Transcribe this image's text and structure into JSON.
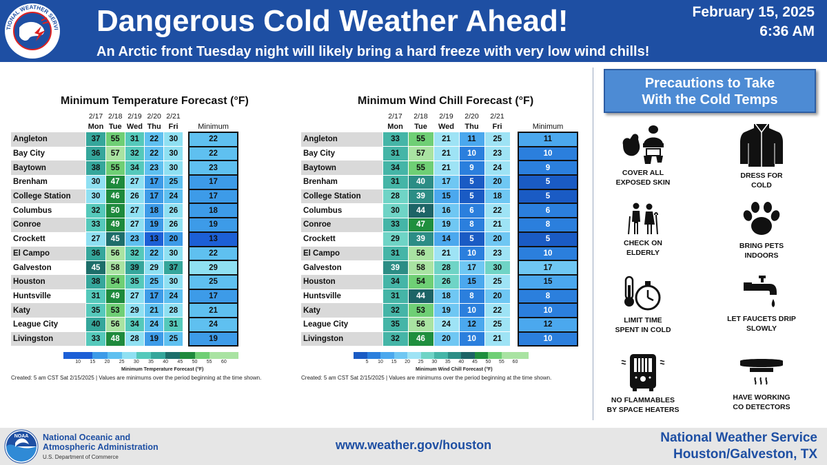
{
  "header": {
    "title": "Dangerous Cold Weather Ahead!",
    "date": "February 15, 2025",
    "time": "6:36 AM",
    "subtitle": "An Arctic front Tuesday night will likely bring a hard freeze with very low wind chills!",
    "logo_text": "NATIONAL WEATHER SERVICE"
  },
  "colors": {
    "header_bg": "#1e4fa3",
    "precautions_box": "#4d8bd4"
  },
  "days": [
    {
      "date": "2/17",
      "day": "Mon"
    },
    {
      "date": "2/18",
      "day": "Tue"
    },
    {
      "date": "2/19",
      "day": "Wed"
    },
    {
      "date": "2/20",
      "day": "Thu"
    },
    {
      "date": "2/21",
      "day": "Fri"
    }
  ],
  "min_label": "Minimum",
  "temp_table": {
    "title": "Minimum Temperature Forecast (°F)",
    "colorbar_label": "Minimum Temperature Forecast (°F)",
    "colorbar_ticks": [
      "10",
      "15",
      "20",
      "25",
      "30",
      "35",
      "40",
      "45",
      "50",
      "55",
      "60"
    ],
    "created": "Created: 5 am CST Sat 2/15/2025  |  Values are minimums over the period beginning at the time shown.",
    "rows": [
      {
        "city": "Angleton",
        "values": [
          37,
          55,
          31,
          22,
          30
        ],
        "min": 22
      },
      {
        "city": "Bay City",
        "values": [
          36,
          57,
          32,
          22,
          30
        ],
        "min": 22
      },
      {
        "city": "Baytown",
        "values": [
          38,
          55,
          34,
          23,
          30
        ],
        "min": 23
      },
      {
        "city": "Brenham",
        "values": [
          30,
          47,
          27,
          17,
          25
        ],
        "min": 17
      },
      {
        "city": "College Station",
        "values": [
          30,
          46,
          26,
          17,
          24
        ],
        "min": 17
      },
      {
        "city": "Columbus",
        "values": [
          32,
          50,
          27,
          18,
          26
        ],
        "min": 18
      },
      {
        "city": "Conroe",
        "values": [
          33,
          49,
          27,
          19,
          26
        ],
        "min": 19
      },
      {
        "city": "Crockett",
        "values": [
          27,
          45,
          23,
          13,
          20
        ],
        "min": 13
      },
      {
        "city": "El Campo",
        "values": [
          36,
          56,
          32,
          22,
          30
        ],
        "min": 22
      },
      {
        "city": "Galveston",
        "values": [
          45,
          58,
          39,
          29,
          37
        ],
        "min": 29
      },
      {
        "city": "Houston",
        "values": [
          38,
          54,
          35,
          25,
          30
        ],
        "min": 25
      },
      {
        "city": "Huntsville",
        "values": [
          31,
          49,
          27,
          17,
          24
        ],
        "min": 17
      },
      {
        "city": "Katy",
        "values": [
          35,
          53,
          29,
          21,
          28
        ],
        "min": 21
      },
      {
        "city": "League City",
        "values": [
          40,
          56,
          34,
          24,
          31
        ],
        "min": 24
      },
      {
        "city": "Livingston",
        "values": [
          33,
          48,
          28,
          19,
          25
        ],
        "min": 19
      }
    ]
  },
  "windchill_table": {
    "title": "Minimum Wind Chill Forecast (°F)",
    "colorbar_label": "Minimum Wind Chill Forecast (°F)",
    "colorbar_ticks": [
      "5",
      "10",
      "15",
      "20",
      "25",
      "30",
      "35",
      "40",
      "45",
      "50",
      "55",
      "60"
    ],
    "created": "Created: 5 am CST Sat 2/15/2025  |  Values are minimums over the period beginning at the time shown.",
    "rows": [
      {
        "city": "Angleton",
        "values": [
          33,
          55,
          21,
          11,
          25
        ],
        "min": 11
      },
      {
        "city": "Bay City",
        "values": [
          31,
          57,
          21,
          10,
          23
        ],
        "min": 10
      },
      {
        "city": "Baytown",
        "values": [
          34,
          55,
          21,
          9,
          24
        ],
        "min": 9
      },
      {
        "city": "Brenham",
        "values": [
          31,
          40,
          17,
          5,
          20
        ],
        "min": 5
      },
      {
        "city": "College Station",
        "values": [
          28,
          39,
          15,
          5,
          18
        ],
        "min": 5
      },
      {
        "city": "Columbus",
        "values": [
          30,
          44,
          16,
          6,
          22
        ],
        "min": 6
      },
      {
        "city": "Conroe",
        "values": [
          33,
          47,
          19,
          8,
          21
        ],
        "min": 8
      },
      {
        "city": "Crockett",
        "values": [
          29,
          39,
          14,
          5,
          20
        ],
        "min": 5
      },
      {
        "city": "El Campo",
        "values": [
          31,
          56,
          21,
          10,
          23
        ],
        "min": 10
      },
      {
        "city": "Galveston",
        "values": [
          39,
          58,
          28,
          17,
          30
        ],
        "min": 17
      },
      {
        "city": "Houston",
        "values": [
          34,
          54,
          26,
          15,
          25
        ],
        "min": 15
      },
      {
        "city": "Huntsville",
        "values": [
          31,
          44,
          18,
          8,
          20
        ],
        "min": 8
      },
      {
        "city": "Katy",
        "values": [
          32,
          53,
          19,
          10,
          22
        ],
        "min": 10
      },
      {
        "city": "League City",
        "values": [
          35,
          56,
          24,
          12,
          25
        ],
        "min": 12
      },
      {
        "city": "Livingston",
        "values": [
          32,
          46,
          20,
          10,
          21
        ],
        "min": 10
      }
    ]
  },
  "precautions": {
    "title_line1": "Precautions to Take",
    "title_line2": "With the Cold Temps",
    "items": [
      {
        "icon": "winter-clothes-icon",
        "line1": "COVER ALL",
        "line2": "EXPOSED SKIN"
      },
      {
        "icon": "jacket-icon",
        "line1": "DRESS FOR",
        "line2": "COLD"
      },
      {
        "icon": "elderly-icon",
        "line1": "CHECK ON",
        "line2": "ELDERLY"
      },
      {
        "icon": "paw-icon",
        "line1": "BRING PETS",
        "line2": "INDOORS"
      },
      {
        "icon": "thermometer-clock-icon",
        "line1": "LIMIT TIME",
        "line2": "SPENT IN COLD"
      },
      {
        "icon": "faucet-icon",
        "line1": "LET FAUCETS DRIP",
        "line2": "SLOWLY"
      },
      {
        "icon": "space-heater-icon",
        "line1": "NO FLAMMABLES",
        "line2": "BY SPACE HEATERS"
      },
      {
        "icon": "co-detector-icon",
        "line1": "HAVE WORKING",
        "line2": "CO DETECTORS"
      }
    ]
  },
  "footer": {
    "noaa_line1": "National Oceanic and",
    "noaa_line2": "Atmospheric Administration",
    "noaa_dept": "U.S. Department of Commerce",
    "noaa_logo_text": "NOAA",
    "url": "www.weather.gov/houston",
    "office_line1": "National Weather Service",
    "office_line2": "Houston/Galveston, TX"
  }
}
